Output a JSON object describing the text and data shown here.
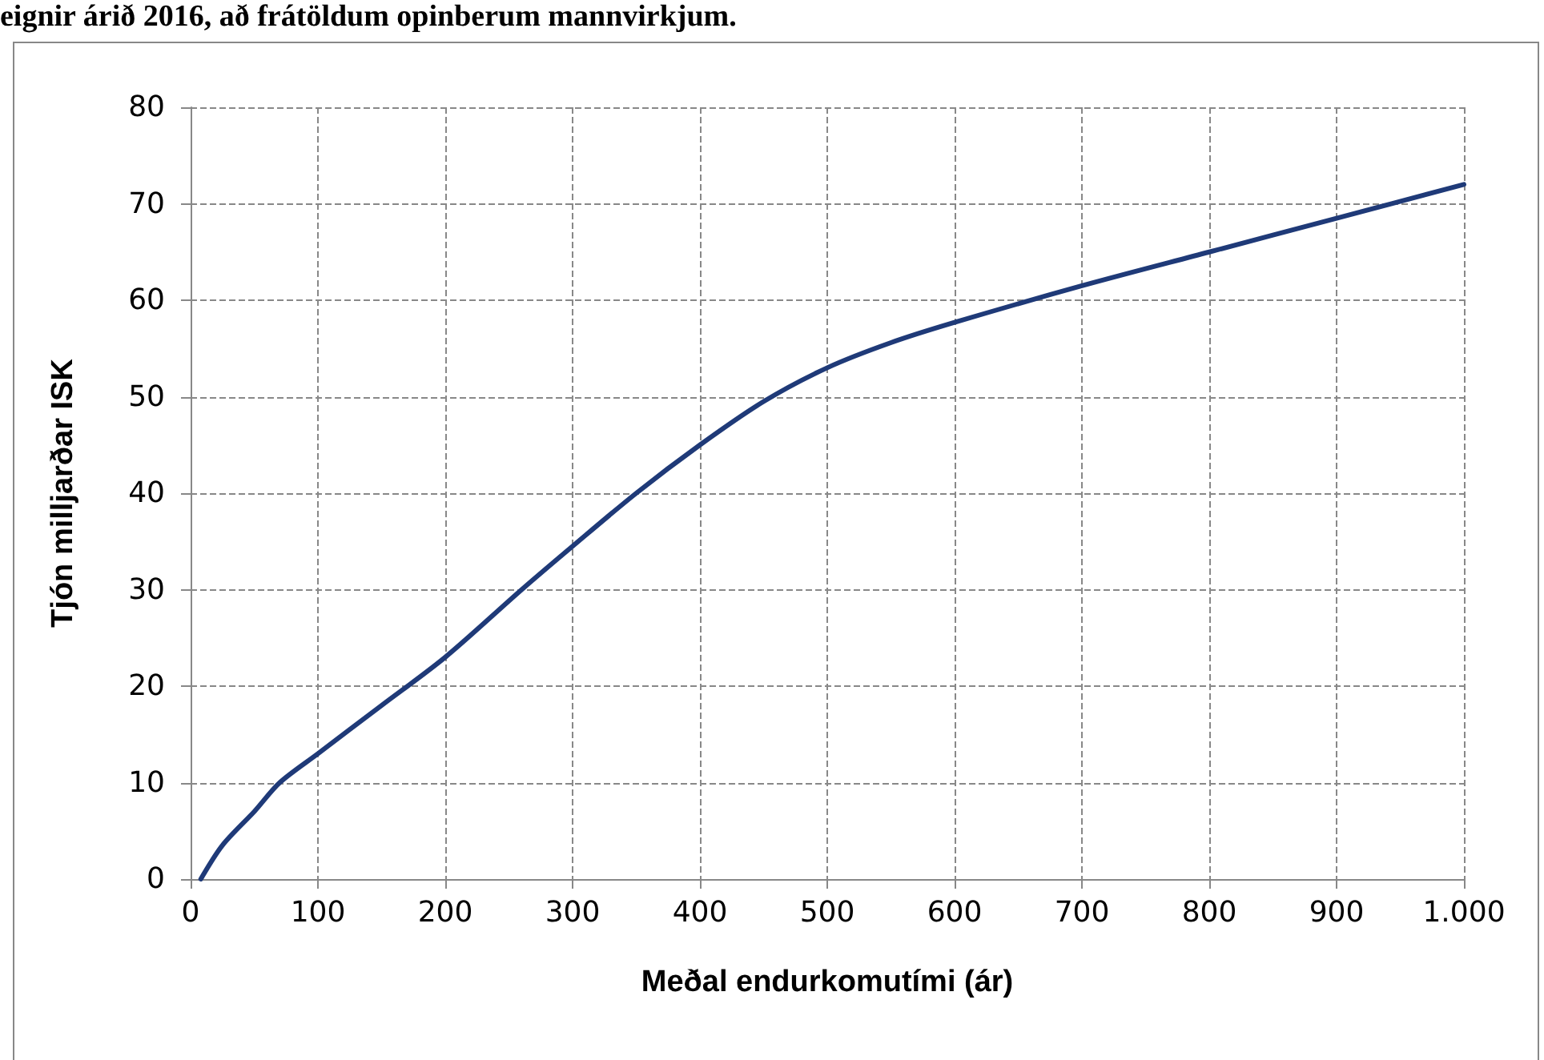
{
  "chart_data": {
    "type": "line",
    "title": "eignir árið 2016, að frátöldum opinberum mannvirkjum.",
    "xlabel": "Meðal endurkomutími (ár)",
    "ylabel": "Tjón milljarðar ISK",
    "series": [
      {
        "color": "#1f3a78",
        "x": [
          8,
          25,
          50,
          70,
          100,
          150,
          200,
          260,
          300,
          350,
          400,
          450,
          500,
          550,
          600,
          700,
          800,
          900,
          1000
        ],
        "values": [
          0,
          3.5,
          7,
          10,
          13,
          18,
          23,
          30,
          34.5,
          40,
          45,
          49.5,
          53,
          55.6,
          57.7,
          61.5,
          65,
          68.5,
          72
        ]
      }
    ],
    "xlim": [
      0,
      1000
    ],
    "xticks": [
      0,
      100,
      200,
      300,
      400,
      500,
      600,
      700,
      800,
      900,
      {
        "value": 1000,
        "label": "1.000"
      }
    ],
    "ylim": [
      0,
      80
    ],
    "yticks": [
      0,
      10,
      20,
      30,
      40,
      50,
      60,
      70,
      80
    ],
    "grid": true,
    "marker": "none",
    "line_style": "solid"
  }
}
